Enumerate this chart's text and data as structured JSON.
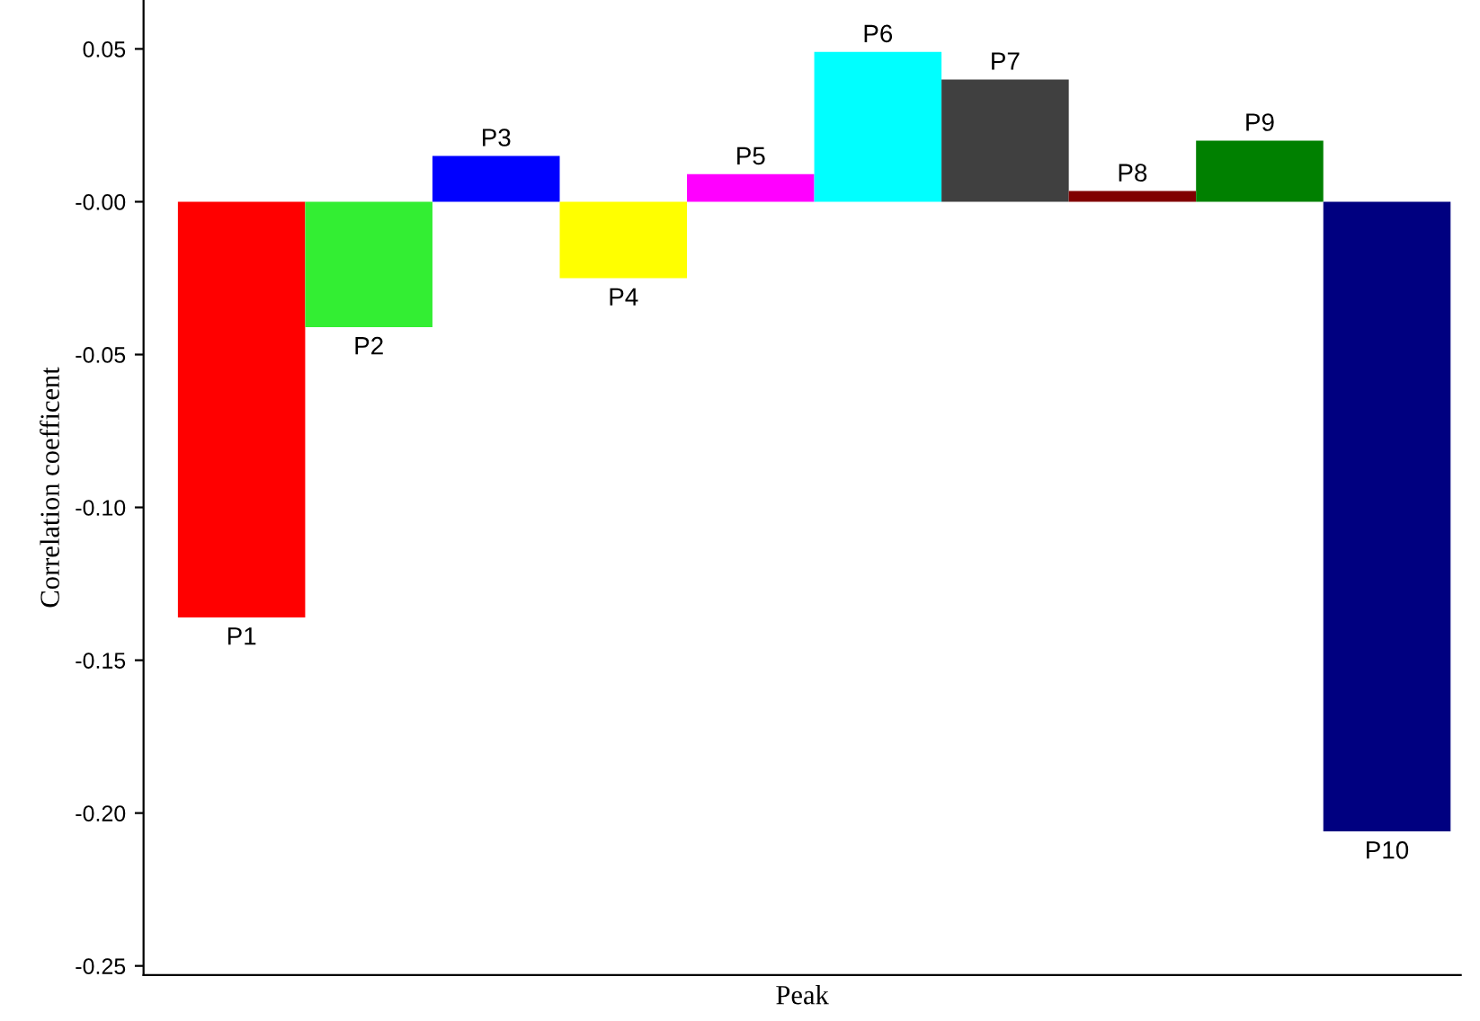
{
  "chart_data": {
    "type": "bar",
    "xlabel": "Peak",
    "ylabel": "Correlation coefficent",
    "categories": [
      "P1",
      "P2",
      "P3",
      "P4",
      "P5",
      "P6",
      "P7",
      "P8",
      "P9",
      "P10"
    ],
    "values": [
      -0.136,
      -0.041,
      0.015,
      -0.025,
      0.009,
      0.049,
      0.04,
      0.0035,
      0.02,
      -0.206
    ],
    "colors": [
      "#ff0000",
      "#33ee33",
      "#0000ff",
      "#ffff00",
      "#ff00ff",
      "#00ffff",
      "#404040",
      "#800000",
      "#008000",
      "#000080"
    ],
    "ylim": [
      -0.253,
      0.066
    ],
    "yticks": [
      {
        "value": 0.05,
        "label": "0.05"
      },
      {
        "value": 0,
        "label": "-0.00"
      },
      {
        "value": -0.05,
        "label": "-0.05"
      },
      {
        "value": -0.1,
        "label": "-0.10"
      },
      {
        "value": -0.15,
        "label": "-0.15"
      },
      {
        "value": -0.2,
        "label": "-0.20"
      },
      {
        "value": -0.25,
        "label": "-0.25"
      }
    ],
    "tick_labels": "y"
  }
}
